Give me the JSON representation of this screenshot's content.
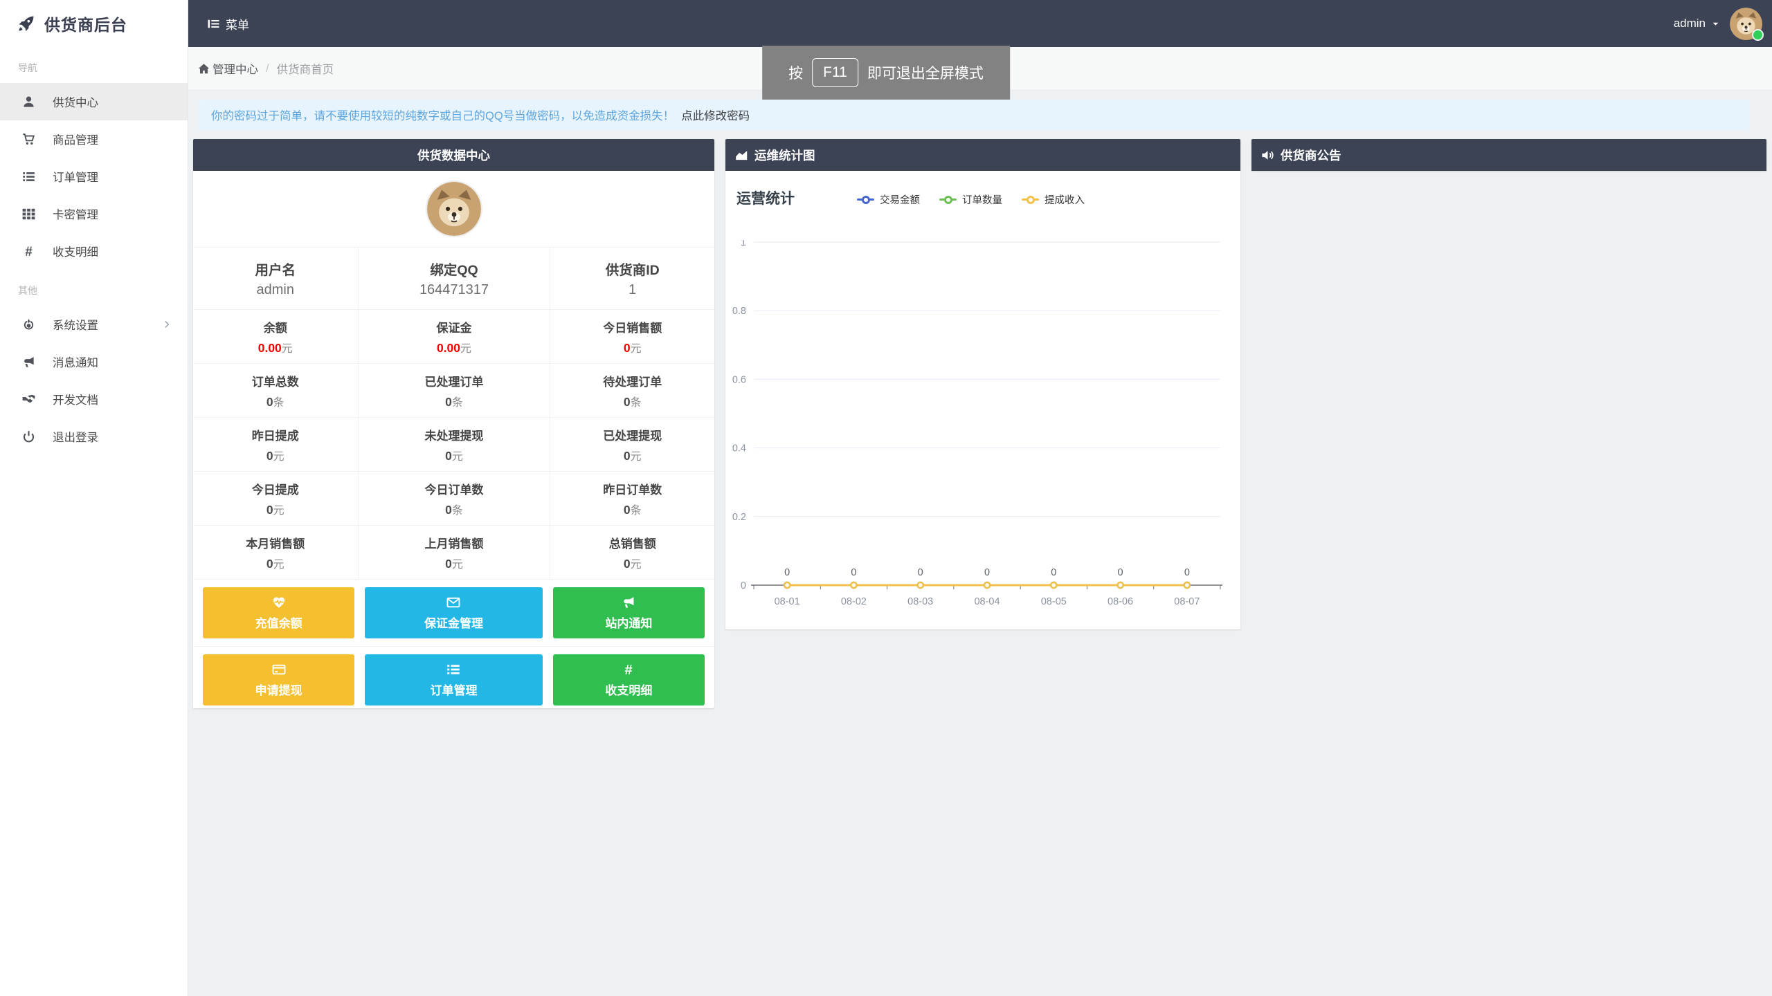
{
  "colors": {
    "header_dark": "#3C4355",
    "button_yellow": "#F5C02F",
    "button_blue": "#23B7E5",
    "button_green": "#2FBE4F",
    "alert_bg": "#E8F4FD",
    "alert_text": "#5DA6E0",
    "stat_red": "#F50000",
    "online_dot": "#2FD05A"
  },
  "brand": {
    "title": "供货商后台",
    "icon": "rocket-icon"
  },
  "topbar": {
    "menu_label": "菜单",
    "menu_icon": "menu-toggle-icon",
    "username": "admin",
    "avatar": "dog-avatar"
  },
  "breadcrumb": {
    "icon": "home-icon",
    "root": "管理中心",
    "separator": "/",
    "current": "供货商首页"
  },
  "toast": {
    "prefix": "按",
    "key": "F11",
    "suffix": "即可退出全屏模式"
  },
  "alert": {
    "message": "你的密码过于简单，请不要使用较短的纯数字或自己的QQ号当做密码，以免造成资金损失！",
    "action": "点此修改密码"
  },
  "sidebar": {
    "sections": [
      {
        "label": "导航",
        "items": [
          {
            "icon": "user-icon",
            "label": "供货中心",
            "active": true
          },
          {
            "icon": "cart-icon",
            "label": "商品管理",
            "active": false
          },
          {
            "icon": "list-icon",
            "label": "订单管理",
            "active": false
          },
          {
            "icon": "grid-icon",
            "label": "卡密管理",
            "active": false
          },
          {
            "icon": "hash-icon",
            "label": "收支明细",
            "active": false
          }
        ]
      },
      {
        "label": "其他",
        "items": [
          {
            "icon": "rebel-icon",
            "label": "系统设置",
            "active": false,
            "has_submenu": true
          },
          {
            "icon": "bullhorn-icon",
            "label": "消息通知",
            "active": false
          },
          {
            "icon": "handshake-icon",
            "label": "开发文档",
            "active": false
          },
          {
            "icon": "power-icon",
            "label": "退出登录",
            "active": false
          }
        ]
      }
    ]
  },
  "data_center": {
    "title": "供货数据中心",
    "avatar": "dog-avatar",
    "rows": [
      [
        {
          "label": "用户名",
          "value": "admin",
          "unit": "",
          "vclass": "sv plain"
        },
        {
          "label": "绑定QQ",
          "value": "164471317",
          "unit": "",
          "vclass": "sv plain"
        },
        {
          "label": "供货商ID",
          "value": "1",
          "unit": "",
          "vclass": "sv plain"
        }
      ],
      [
        {
          "label": "余额",
          "value": "0.00",
          "unit": "元",
          "vclass": "sv red"
        },
        {
          "label": "保证金",
          "value": "0.00",
          "unit": "元",
          "vclass": "sv red"
        },
        {
          "label": "今日销售额",
          "value": "0",
          "unit": "元",
          "vclass": "sv red"
        }
      ],
      [
        {
          "label": "订单总数",
          "value": "0",
          "unit": "条",
          "vclass": "sv dark"
        },
        {
          "label": "已处理订单",
          "value": "0",
          "unit": "条",
          "vclass": "sv dark"
        },
        {
          "label": "待处理订单",
          "value": "0",
          "unit": "条",
          "vclass": "sv dark"
        }
      ],
      [
        {
          "label": "昨日提成",
          "value": "0",
          "unit": "元",
          "vclass": "sv dark"
        },
        {
          "label": "未处理提现",
          "value": "0",
          "unit": "元",
          "vclass": "sv dark"
        },
        {
          "label": "已处理提现",
          "value": "0",
          "unit": "元",
          "vclass": "sv dark"
        }
      ],
      [
        {
          "label": "今日提成",
          "value": "0",
          "unit": "元",
          "vclass": "sv dark"
        },
        {
          "label": "今日订单数",
          "value": "0",
          "unit": "条",
          "vclass": "sv dark"
        },
        {
          "label": "昨日订单数",
          "value": "0",
          "unit": "条",
          "vclass": "sv dark"
        }
      ],
      [
        {
          "label": "本月销售额",
          "value": "0",
          "unit": "元",
          "vclass": "sv dark"
        },
        {
          "label": "上月销售额",
          "value": "0",
          "unit": "元",
          "vclass": "sv dark"
        },
        {
          "label": "总销售额",
          "value": "0",
          "unit": "元",
          "vclass": "sv dark"
        }
      ]
    ],
    "buttons": [
      {
        "label": "充值余额",
        "icon": "heartbeat-icon",
        "cls": "btn yellow"
      },
      {
        "label": "保证金管理",
        "icon": "envelope-icon",
        "cls": "btn blue"
      },
      {
        "label": "站内通知",
        "icon": "bullhorn-icon",
        "cls": "btn green"
      },
      {
        "label": "申请提现",
        "icon": "card-icon",
        "cls": "btn yellow"
      },
      {
        "label": "订单管理",
        "icon": "list-icon",
        "cls": "btn blue"
      },
      {
        "label": "收支明细",
        "icon": "hash-icon",
        "cls": "btn green"
      }
    ]
  },
  "chart_panel": {
    "header": "运维统计图",
    "icon": "area-chart-icon"
  },
  "chart_data": {
    "type": "line",
    "title": "运营统计",
    "categories": [
      "08-01",
      "08-02",
      "08-03",
      "08-04",
      "08-05",
      "08-06",
      "08-07"
    ],
    "series": [
      {
        "name": "交易金额",
        "color": "#4667CD",
        "values": [
          0,
          0,
          0,
          0,
          0,
          0,
          0
        ]
      },
      {
        "name": "订单数量",
        "color": "#6CBF55",
        "values": [
          0,
          0,
          0,
          0,
          0,
          0,
          0
        ]
      },
      {
        "name": "提成收入",
        "color": "#F3C14B",
        "values": [
          0,
          0,
          0,
          0,
          0,
          0,
          0
        ]
      }
    ],
    "point_labels": [
      0,
      0,
      0,
      0,
      0,
      0,
      0
    ],
    "ylim": [
      0,
      1
    ],
    "yticks": [
      0,
      0.2,
      0.4,
      0.6,
      0.8,
      1
    ],
    "grid": true,
    "legend_position": "top",
    "xlabel": "",
    "ylabel": ""
  },
  "announcement": {
    "header": "供货商公告",
    "icon": "volume-icon"
  }
}
